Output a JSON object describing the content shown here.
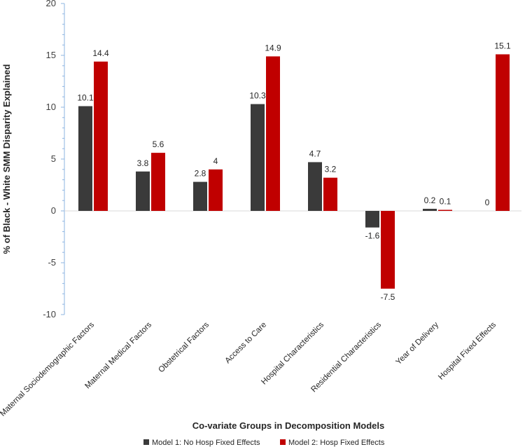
{
  "chart_data": {
    "type": "bar",
    "title": "",
    "xlabel": "Co-variate Groups in Decomposition Models",
    "ylabel": "% of Black - White SMM Disparity Explained",
    "ylim": [
      -10,
      20
    ],
    "yticks": [
      -10,
      -5,
      0,
      5,
      10,
      15,
      20
    ],
    "ytick_labels": [
      "-10",
      "-5",
      "0",
      "5",
      "10",
      "15",
      "20"
    ],
    "categories": [
      "Maternal Sociodemographic Factors",
      "Maternal Medical Factors",
      "Obstetrical Factors",
      "Access to Care",
      "Hospital Characteristics",
      "Residential Characteristics",
      "Year of Delivery",
      "Hospital Fixed Effects"
    ],
    "series": [
      {
        "name": "Model 1: No Hosp Fixed Effects",
        "color": "#3a3a3a",
        "values": [
          10.1,
          3.8,
          2.8,
          10.3,
          4.7,
          -1.6,
          0.2,
          0
        ],
        "labels": [
          "10.1",
          "3.8",
          "2.8",
          "10.3",
          "4.7",
          "-1.6",
          "0.2",
          "0"
        ]
      },
      {
        "name": "Model 2: Hosp Fixed Effects",
        "color": "#c00000",
        "values": [
          14.4,
          5.6,
          4,
          14.9,
          3.2,
          -7.5,
          0.1,
          15.1
        ],
        "labels": [
          "14.4",
          "5.6",
          "4",
          "14.9",
          "3.2",
          "-7.5",
          "0.1",
          "15.1"
        ]
      }
    ],
    "legend_position": "bottom-center",
    "grid": false,
    "axis_color": "#8db4e2"
  }
}
